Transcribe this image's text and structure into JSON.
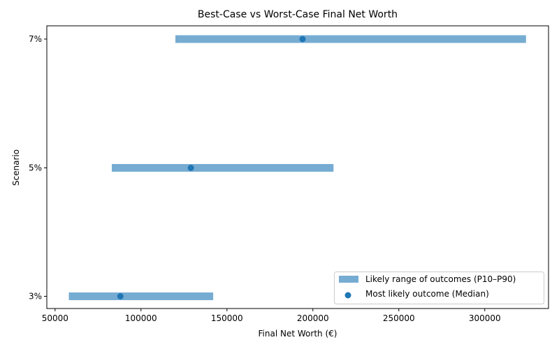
{
  "chart_data": {
    "type": "range-dot",
    "title": "Best-Case vs Worst-Case Final Net Worth",
    "xlabel": "Final Net Worth (€)",
    "ylabel": "Scenario",
    "categories": [
      "3%",
      "5%",
      "7%"
    ],
    "series": [
      {
        "name": "Likely range of outcomes (P10–P90)",
        "kind": "range",
        "low": [
          58000,
          83000,
          120000
        ],
        "high": [
          142000,
          212000,
          324000
        ]
      },
      {
        "name": "Most likely outcome (Median)",
        "kind": "point",
        "values": [
          88000,
          129000,
          194000
        ]
      }
    ],
    "xlim": [
      45200,
      337100
    ],
    "xticks": [
      50000,
      100000,
      150000,
      200000,
      250000,
      300000
    ],
    "xtick_labels": [
      "50000",
      "100000",
      "150000",
      "200000",
      "250000",
      "300000"
    ],
    "grid": false,
    "legend_position": "lower right"
  },
  "colors": {
    "range": "#76acd2",
    "median": "#1f77b4",
    "axis": "#000000",
    "legend_border": "#cccccc"
  },
  "labels": {
    "title": "Best-Case vs Worst-Case Final Net Worth",
    "xlabel": "Final Net Worth (€)",
    "ylabel": "Scenario",
    "legend_range": "Likely range of outcomes (P10–P90)",
    "legend_median": "Most likely outcome (Median)"
  }
}
